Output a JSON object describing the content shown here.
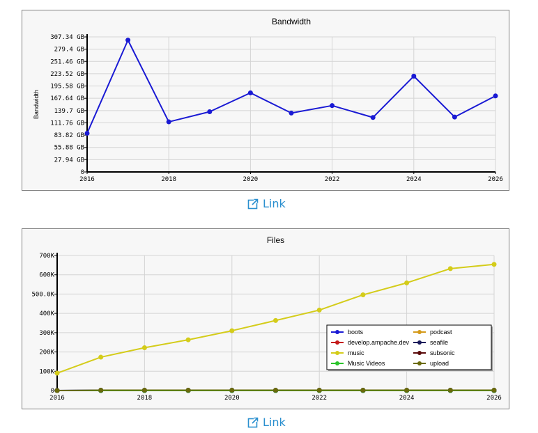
{
  "colors": {
    "bandwidth_line": "#1a1ad4",
    "link": "#2a8fcf"
  },
  "link_label": "Link",
  "chart_data": [
    {
      "type": "line",
      "title": "Bandwidth",
      "ylabel": "Bandwidth",
      "xlabel": "",
      "x": [
        2016,
        2017,
        2018,
        2019,
        2020,
        2021,
        2022,
        2023,
        2024,
        2025,
        2026
      ],
      "xlim": [
        2016,
        2026
      ],
      "xticks": [
        "2016",
        "2018",
        "2020",
        "2022",
        "2024",
        "2026"
      ],
      "ylim": [
        0,
        307.34
      ],
      "yticks": [
        "0",
        "27.94 GB",
        "55.88 GB",
        "83.82 GB",
        "111.76 GB",
        "139.7 GB",
        "167.64 GB",
        "195.58 GB",
        "223.52 GB",
        "251.46 GB",
        "279.4 GB",
        "307.34 GB"
      ],
      "grid": true,
      "series": [
        {
          "color": "#1a1ad4",
          "values": [
            88,
            300,
            114,
            137,
            180,
            134,
            151,
            124,
            218,
            125,
            173
          ]
        }
      ]
    },
    {
      "type": "line",
      "title": "Files",
      "xlabel": "",
      "ylabel": "",
      "x": [
        2016,
        2017,
        2018,
        2019,
        2020,
        2021,
        2022,
        2023,
        2024,
        2025,
        2026
      ],
      "xlim": [
        2016,
        2026
      ],
      "xticks": [
        "2016",
        "2018",
        "2020",
        "2022",
        "2024",
        "2026"
      ],
      "ylim": [
        0,
        700000
      ],
      "yticks": [
        "0",
        "100K",
        "200K",
        "300K",
        "400K",
        "500.0K",
        "600K",
        "700K"
      ],
      "grid": true,
      "legend_position": "bottom-right",
      "series": [
        {
          "name": "boots",
          "color": "#1a1ad4",
          "values": [
            0,
            2000,
            2000,
            2000,
            2000,
            2000,
            2000,
            2000,
            2000,
            2000,
            2000
          ]
        },
        {
          "name": "podcast",
          "color": "#d49a1a",
          "values": [
            0,
            0,
            0,
            0,
            0,
            0,
            0,
            0,
            0,
            0,
            0
          ]
        },
        {
          "name": "develop.ampache.dev",
          "color": "#c41a1a",
          "values": [
            0,
            0,
            0,
            0,
            0,
            0,
            0,
            0,
            0,
            0,
            0
          ]
        },
        {
          "name": "seafile",
          "color": "#1a1a5a",
          "values": [
            0,
            0,
            0,
            0,
            0,
            0,
            0,
            0,
            0,
            0,
            0
          ]
        },
        {
          "name": "music",
          "color": "#d4cc1a",
          "values": [
            90000,
            173000,
            222000,
            263000,
            310000,
            363000,
            417000,
            496000,
            558000,
            632000,
            654000
          ]
        },
        {
          "name": "subsonic",
          "color": "#5a0a0a",
          "values": [
            0,
            0,
            0,
            0,
            0,
            0,
            0,
            0,
            0,
            0,
            0
          ]
        },
        {
          "name": "Music Videos",
          "color": "#2ac42a",
          "values": [
            0,
            0,
            0,
            0,
            0,
            0,
            0,
            0,
            0,
            0,
            0
          ]
        },
        {
          "name": "upload",
          "color": "#6a6a0a",
          "values": [
            0,
            2000,
            2000,
            2000,
            2000,
            2000,
            2000,
            2000,
            2000,
            2000,
            2000
          ]
        }
      ]
    }
  ]
}
